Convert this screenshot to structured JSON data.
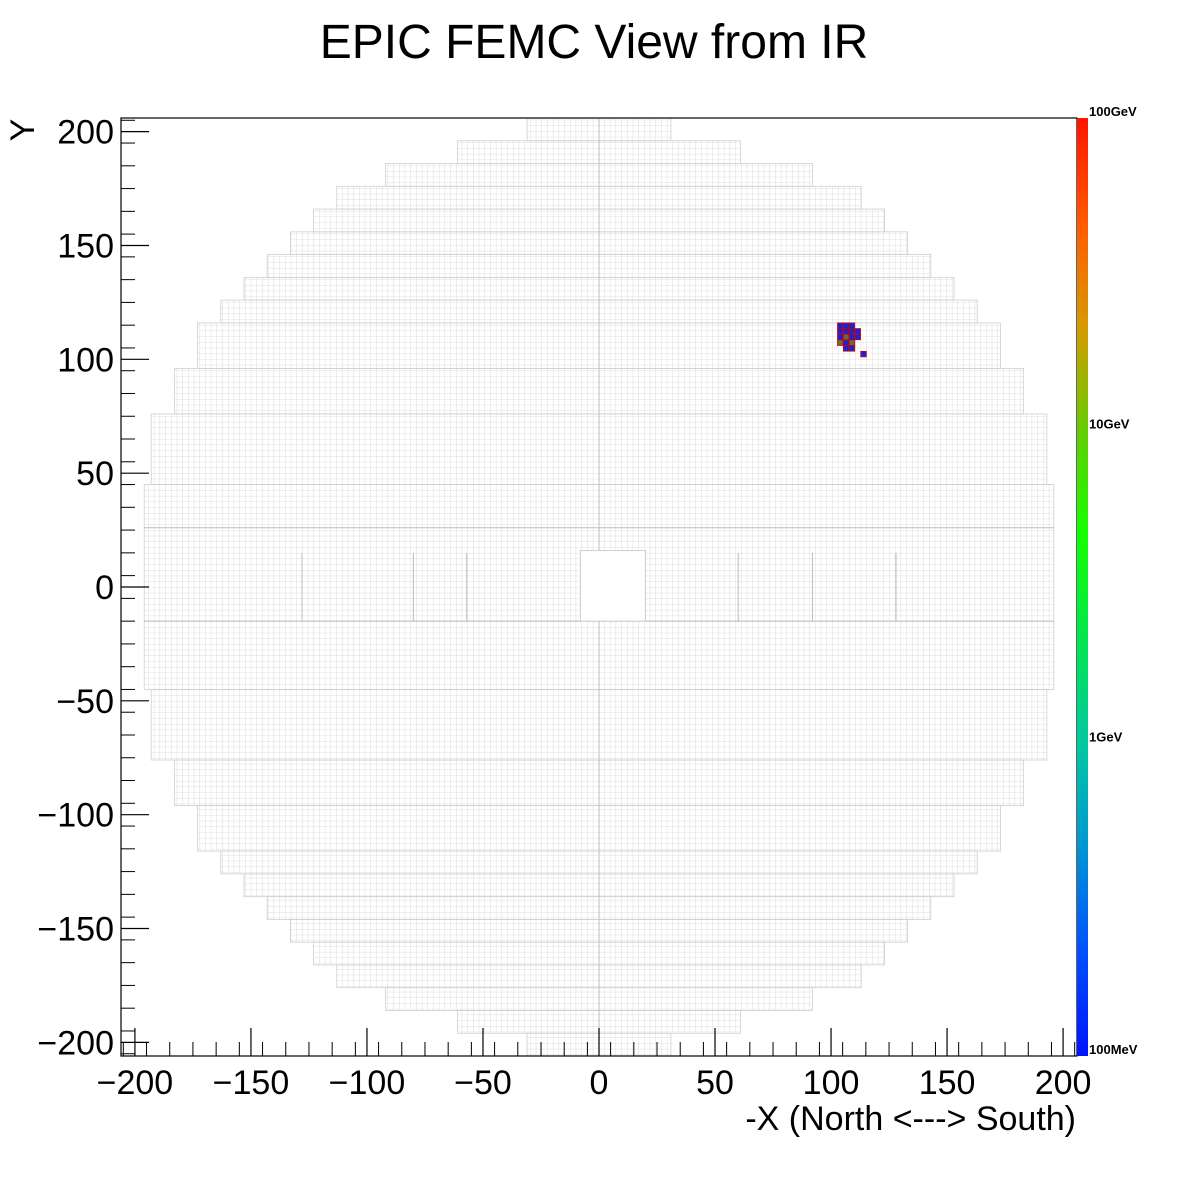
{
  "chart_data": {
    "type": "heatmap",
    "title": "EPIC FEMC View from IR",
    "xlabel": "-X (North <---> South)",
    "ylabel": "Y",
    "xlim": [
      -206,
      206
    ],
    "ylim": [
      -206,
      206
    ],
    "x_ticks": [
      -200,
      -150,
      -100,
      -50,
      0,
      50,
      100,
      150,
      200
    ],
    "y_ticks": [
      -200,
      -150,
      -100,
      -50,
      0,
      50,
      100,
      150,
      200
    ],
    "x_tick_labels": [
      "−200",
      "−150",
      "−100",
      "−50",
      "0",
      "50",
      "100",
      "150",
      "200"
    ],
    "y_tick_labels": [
      "−200",
      "−150",
      "−100",
      "−50",
      "0",
      "50",
      "100",
      "150",
      "200"
    ],
    "colorbar": {
      "scale": "log",
      "labels": [
        "100GeV",
        "10GeV",
        "1GeV",
        "100MeV"
      ],
      "gradient_top_to_bottom": [
        "#ff1400",
        "#ff5a00",
        "#d69a00",
        "#66cc00",
        "#14ff00",
        "#00e650",
        "#00c8a0",
        "#0096d2",
        "#0050ff",
        "#0014ff"
      ]
    },
    "detector_outline": {
      "cell_size": 2.5,
      "beam_hole": {
        "x": [
          -8,
          20
        ],
        "y": [
          -15,
          16
        ]
      },
      "rows": [
        {
          "y": [
            -206,
            -196
          ],
          "x": [
            -31,
            31
          ]
        },
        {
          "y": [
            -196,
            -186
          ],
          "x": [
            -61,
            61
          ]
        },
        {
          "y": [
            -186,
            -176
          ],
          "x": [
            -92,
            92
          ]
        },
        {
          "y": [
            -176,
            -166
          ],
          "x": [
            -113,
            113
          ]
        },
        {
          "y": [
            -166,
            -156
          ],
          "x": [
            -123,
            123
          ]
        },
        {
          "y": [
            -156,
            -146
          ],
          "x": [
            -133,
            133
          ]
        },
        {
          "y": [
            -146,
            -136
          ],
          "x": [
            -143,
            143
          ]
        },
        {
          "y": [
            -136,
            -126
          ],
          "x": [
            -153,
            153
          ]
        },
        {
          "y": [
            -126,
            -116
          ],
          "x": [
            -163,
            163
          ]
        },
        {
          "y": [
            -116,
            -96
          ],
          "x": [
            -173,
            173
          ]
        },
        {
          "y": [
            -96,
            -76
          ],
          "x": [
            -183,
            183
          ]
        },
        {
          "y": [
            -76,
            -45
          ],
          "x": [
            -193,
            193
          ]
        },
        {
          "y": [
            -45,
            45
          ],
          "x": [
            -196,
            196
          ]
        },
        {
          "y": [
            45,
            76
          ],
          "x": [
            -193,
            193
          ]
        },
        {
          "y": [
            76,
            96
          ],
          "x": [
            -183,
            183
          ]
        },
        {
          "y": [
            96,
            116
          ],
          "x": [
            -173,
            173
          ]
        },
        {
          "y": [
            116,
            126
          ],
          "x": [
            -163,
            163
          ]
        },
        {
          "y": [
            126,
            136
          ],
          "x": [
            -153,
            153
          ]
        },
        {
          "y": [
            136,
            146
          ],
          "x": [
            -143,
            143
          ]
        },
        {
          "y": [
            146,
            156
          ],
          "x": [
            -133,
            133
          ]
        },
        {
          "y": [
            156,
            166
          ],
          "x": [
            -123,
            123
          ]
        },
        {
          "y": [
            166,
            176
          ],
          "x": [
            -113,
            113
          ]
        },
        {
          "y": [
            176,
            186
          ],
          "x": [
            -92,
            92
          ]
        },
        {
          "y": [
            186,
            196
          ],
          "x": [
            -61,
            61
          ]
        },
        {
          "y": [
            196,
            206
          ],
          "x": [
            -31,
            31
          ]
        }
      ]
    },
    "hits": [
      {
        "x": 104.0,
        "y": 114.8,
        "level": "high"
      },
      {
        "x": 106.5,
        "y": 114.8,
        "level": "high"
      },
      {
        "x": 109.0,
        "y": 114.8,
        "level": "high"
      },
      {
        "x": 104.0,
        "y": 112.3,
        "level": "high"
      },
      {
        "x": 106.5,
        "y": 112.3,
        "level": "high"
      },
      {
        "x": 109.0,
        "y": 112.3,
        "level": "high"
      },
      {
        "x": 111.5,
        "y": 112.3,
        "level": "high"
      },
      {
        "x": 104.0,
        "y": 109.8,
        "level": "high"
      },
      {
        "x": 106.5,
        "y": 109.8,
        "level": "low"
      },
      {
        "x": 109.0,
        "y": 109.8,
        "level": "high"
      },
      {
        "x": 111.5,
        "y": 109.8,
        "level": "high"
      },
      {
        "x": 104.0,
        "y": 107.3,
        "level": "low"
      },
      {
        "x": 106.5,
        "y": 107.3,
        "level": "high"
      },
      {
        "x": 109.0,
        "y": 107.3,
        "level": "low"
      },
      {
        "x": 106.5,
        "y": 104.8,
        "level": "high"
      },
      {
        "x": 109.0,
        "y": 104.8,
        "level": "high"
      },
      {
        "x": 114.0,
        "y": 102.3,
        "level": "high"
      }
    ]
  }
}
